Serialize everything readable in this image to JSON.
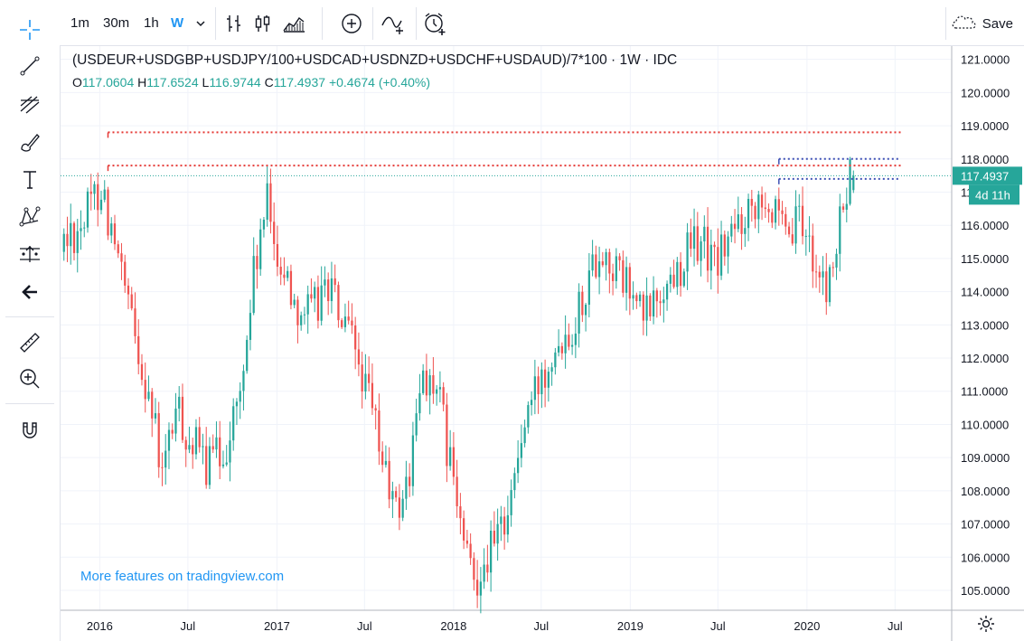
{
  "toolbar": {
    "intervals": [
      "1m",
      "30m",
      "1h",
      "W"
    ],
    "active_interval": "W",
    "save_label": "Save"
  },
  "left_tools": [
    "crosshair-icon",
    "trendline-icon",
    "fib-retracement-icon",
    "brush-icon",
    "text-icon",
    "pattern-icon",
    "measure-levels-icon",
    "back-arrow-icon",
    "ruler-icon",
    "zoom-in-icon",
    "magnet-icon"
  ],
  "legend": {
    "title": "(USDEUR+USDGBP+USDJPY/100+USDCAD+USDNZD+USDCHF+USDAUD)/7*100 · 1W · IDC",
    "o_label": "O",
    "o_value": "117.0604",
    "h_label": "H",
    "h_value": "117.6524",
    "l_label": "L",
    "l_value": "116.9744",
    "c_label": "C",
    "c_value": "117.4937",
    "change": "+0.4674 (+0.40%)"
  },
  "watermark": "More features on tradingview.com",
  "colors": {
    "up": "#26a69a",
    "down": "#ef5350",
    "grid": "#f0f3fa",
    "price_line": "#26a69a",
    "red_level": "#e53935",
    "blue_level": "#3f51b5",
    "accent": "#2196f3"
  },
  "chart_data": {
    "type": "candlestick",
    "symbol": "(USDEUR+USDGBP+USDJPY/100+USDCAD+USDNZD+USDCHF+USDAUD)/7*100",
    "interval": "1W",
    "source": "IDC",
    "ylim": [
      104.4,
      121.4
    ],
    "y_ticks": [
      "121.0000",
      "120.0000",
      "119.0000",
      "118.0000",
      "117.0000",
      "116.0000",
      "115.0000",
      "114.0000",
      "113.0000",
      "112.0000",
      "111.0000",
      "110.0000",
      "109.0000",
      "108.0000",
      "107.0000",
      "106.0000",
      "105.0000"
    ],
    "x_ticks": [
      "2016",
      "Jul",
      "2017",
      "Jul",
      "2018",
      "Jul",
      "2019",
      "Jul",
      "2020",
      "Jul"
    ],
    "x_range": [
      "2015-10-12",
      "2020-10-26"
    ],
    "last_price": "117.4937",
    "countdown": "4d 11h",
    "anchors": [
      [
        "2015-10-19",
        115.4
      ],
      [
        "2015-12-07",
        116.2
      ],
      [
        "2016-01-11",
        117.3
      ],
      [
        "2016-02-08",
        115.3
      ],
      [
        "2016-03-14",
        113.0
      ],
      [
        "2016-04-18",
        111.0
      ],
      [
        "2016-05-16",
        108.4
      ],
      [
        "2016-06-13",
        110.5
      ],
      [
        "2016-07-11",
        109.5
      ],
      [
        "2016-08-15",
        108.8
      ],
      [
        "2016-09-19",
        109.2
      ],
      [
        "2016-10-24",
        110.8
      ],
      [
        "2016-11-21",
        114.5
      ],
      [
        "2016-12-19",
        116.6
      ],
      [
        "2017-01-16",
        114.8
      ],
      [
        "2017-02-20",
        113.6
      ],
      [
        "2017-03-20",
        113.3
      ],
      [
        "2017-04-24",
        114.3
      ],
      [
        "2017-05-22",
        113.0
      ],
      [
        "2017-06-19",
        112.2
      ],
      [
        "2017-07-24",
        110.3
      ],
      [
        "2017-08-21",
        108.5
      ],
      [
        "2017-09-11",
        107.3
      ],
      [
        "2017-10-09",
        108.5
      ],
      [
        "2017-11-06",
        111.7
      ],
      [
        "2017-12-11",
        110.5
      ],
      [
        "2018-01-08",
        108.2
      ],
      [
        "2018-01-29",
        106.3
      ],
      [
        "2018-02-19",
        105.3
      ],
      [
        "2018-03-12",
        106.0
      ],
      [
        "2018-04-09",
        106.5
      ],
      [
        "2018-05-07",
        108.0
      ],
      [
        "2018-06-04",
        110.0
      ],
      [
        "2018-07-02",
        111.2
      ],
      [
        "2018-08-06",
        112.6
      ],
      [
        "2018-09-10",
        113.0
      ],
      [
        "2018-10-08",
        114.2
      ],
      [
        "2018-11-05",
        115.3
      ],
      [
        "2018-12-10",
        114.6
      ],
      [
        "2019-01-07",
        114.0
      ],
      [
        "2019-02-04",
        113.2
      ],
      [
        "2019-03-04",
        113.8
      ],
      [
        "2019-04-08",
        114.5
      ],
      [
        "2019-05-06",
        115.2
      ],
      [
        "2019-06-03",
        115.6
      ],
      [
        "2019-07-01",
        114.8
      ],
      [
        "2019-08-05",
        115.7
      ],
      [
        "2019-09-02",
        116.4
      ],
      [
        "2019-10-07",
        117.2
      ],
      [
        "2019-10-28",
        116.4
      ],
      [
        "2019-11-25",
        115.4
      ],
      [
        "2019-12-23",
        116.1
      ],
      [
        "2020-01-20",
        115.2
      ],
      [
        "2020-02-10",
        114.0
      ],
      [
        "2020-03-02",
        114.7
      ],
      [
        "2020-03-23",
        116.5
      ],
      [
        "2020-04-06",
        117.49
      ]
    ],
    "final_candle": {
      "date": "2020-04-06",
      "open": 117.0604,
      "high": 117.6524,
      "low": 116.9744,
      "close": 117.4937
    },
    "levels": [
      {
        "price": 118.8,
        "from": "2016-01-18",
        "to": "2020-07-13",
        "color": "red",
        "style": "dotted"
      },
      {
        "price": 117.8,
        "from": "2016-01-18",
        "to": "2020-07-13",
        "color": "red",
        "style": "dotted"
      },
      {
        "price": 118.0,
        "from": "2019-11-04",
        "to": "2020-07-13",
        "color": "blue",
        "style": "dotted"
      },
      {
        "price": 117.4,
        "from": "2019-11-04",
        "to": "2020-07-13",
        "color": "blue",
        "style": "dotted"
      }
    ]
  }
}
